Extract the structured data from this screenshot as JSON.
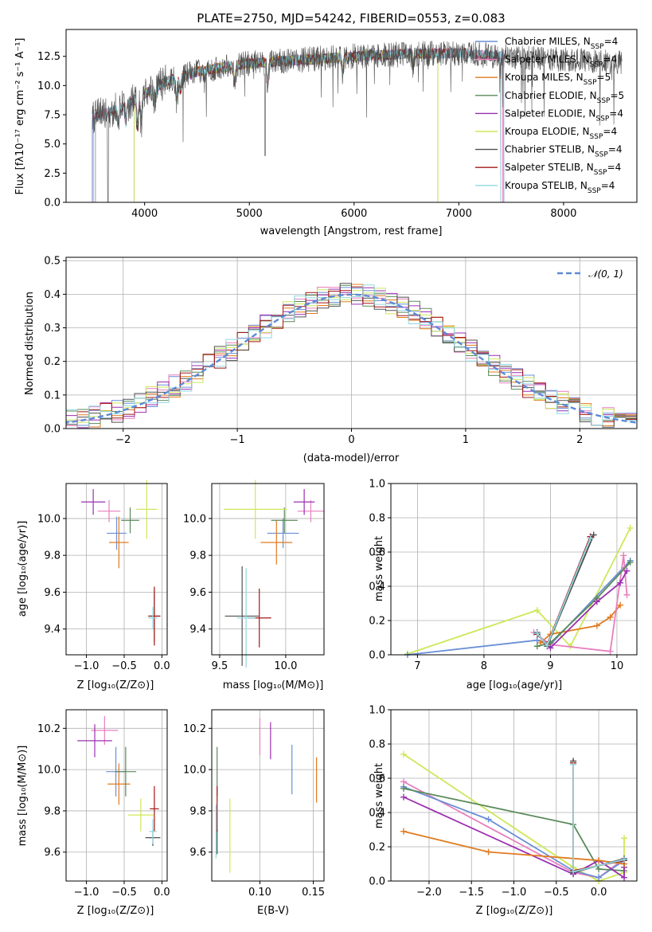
{
  "colors": {
    "chabrier_miles": "#6a8fd6",
    "salpeter_miles": "#e87fbf",
    "kroupa_miles": "#e07b1f",
    "chabrier_elodie": "#5a8a5a",
    "salpeter_elodie": "#9b2fb0",
    "kroupa_elodie": "#cde85a",
    "chabrier_stelib": "#505050",
    "salpeter_stelib": "#a41818",
    "kroupa_stelib": "#8fd8e0",
    "gauss": "#5b8ad6"
  },
  "chart_data": [
    {
      "id": "spectrum",
      "type": "line",
      "title": "PLATE=2750, MJD=54242, FIBERID=0553, z=0.083",
      "xlabel": "wavelength [Angstrom, rest frame]",
      "ylabel": "Flux [fλ10⁻¹⁷ erg cm⁻² s⁻¹ A⁻¹]",
      "xlim": [
        3250,
        8700
      ],
      "ylim": [
        0,
        14.8
      ],
      "xticks": [
        "4000",
        "5000",
        "6000",
        "7000",
        "8000"
      ],
      "yticks": [
        "0.0",
        "2.5",
        "5.0",
        "7.5",
        "10.0",
        "12.5"
      ],
      "grid": false,
      "legend_position": "right",
      "legend": [
        {
          "name": "Chabrier MILES, N",
          "sub": "SSP",
          "tail": "=4"
        },
        {
          "name": "Salpeter MILES, N",
          "sub": "SSP",
          "tail": "=4"
        },
        {
          "name": "Kroupa MILES, N",
          "sub": "SSP",
          "tail": "=5"
        },
        {
          "name": "Chabrier ELODIE, N",
          "sub": "SSP",
          "tail": "=5"
        },
        {
          "name": "Salpeter ELODIE, N",
          "sub": "SSP",
          "tail": "=4"
        },
        {
          "name": "Kroupa ELODIE, N",
          "sub": "SSP",
          "tail": "=4"
        },
        {
          "name": "Chabrier STELIB, N",
          "sub": "SSP",
          "tail": "=4"
        },
        {
          "name": "Salpeter STELIB, N",
          "sub": "SSP",
          "tail": "=4"
        },
        {
          "name": "Kroupa STELIB, N",
          "sub": "SSP",
          "tail": "=4"
        }
      ],
      "continuum_points": [
        [
          3500,
          7.2
        ],
        [
          3800,
          8.2
        ],
        [
          4000,
          9.3
        ],
        [
          4200,
          10.3
        ],
        [
          4500,
          11.2
        ],
        [
          5000,
          11.9
        ],
        [
          5500,
          12.2
        ],
        [
          6000,
          12.5
        ],
        [
          6500,
          12.7
        ],
        [
          7000,
          12.8
        ],
        [
          7400,
          12.5
        ],
        [
          8000,
          12.2
        ],
        [
          8500,
          12.0
        ]
      ],
      "data_range": [
        3500,
        8560
      ],
      "model_ranges": [
        [
          3500,
          7430
        ],
        [
          3510,
          7420
        ],
        [
          3900,
          6800
        ],
        [
          3900,
          6800
        ],
        [
          3900,
          6800
        ],
        [
          3900,
          6800
        ],
        [
          3530,
          7400
        ],
        [
          3530,
          7400
        ],
        [
          3530,
          7400
        ]
      ]
    },
    {
      "id": "residuals",
      "type": "histogram",
      "xlabel": "(data-model)/error",
      "ylabel": "Normed distribution",
      "xlim": [
        -2.5,
        2.5
      ],
      "ylim": [
        0,
        0.51
      ],
      "xticks": [
        "−2",
        "−1",
        "0",
        "1",
        "2"
      ],
      "yticks": [
        "0.0",
        "0.1",
        "0.2",
        "0.3",
        "0.4",
        "0.5"
      ],
      "grid": true,
      "bin_width": 0.1,
      "legend_position": "upper right",
      "legend_label": "𝒩(0, 1)"
    },
    {
      "id": "age-vs-Z",
      "type": "scatter",
      "xlabel": "Z [log₁₀(Z/Z⊙)]",
      "ylabel": "age  [log₁₀(age/yr)]",
      "xlim": [
        -1.27,
        0.07
      ],
      "ylim": [
        9.26,
        10.19
      ],
      "xticks": [
        {
          "v": -1.0,
          "t": "−1.0"
        },
        {
          "v": -0.5,
          "t": "−0.5"
        },
        {
          "v": 0.0,
          "t": "0.0"
        }
      ],
      "yticks": [
        {
          "v": 9.4,
          "t": "9.4"
        },
        {
          "v": 9.6,
          "t": "9.6"
        },
        {
          "v": 9.8,
          "t": "9.8"
        },
        {
          "v": 10.0,
          "t": "10.0"
        }
      ],
      "points": [
        {
          "series": "chabrier_miles",
          "x": -0.6,
          "y": 9.92,
          "xerr": 0.13,
          "yerr": 0.09
        },
        {
          "series": "salpeter_miles",
          "x": -0.7,
          "y": 10.04,
          "xerr": 0.15,
          "yerr": 0.06
        },
        {
          "series": "kroupa_miles",
          "x": -0.57,
          "y": 9.87,
          "xerr": 0.13,
          "yerr": 0.14
        },
        {
          "series": "chabrier_elodie",
          "x": -0.42,
          "y": 9.99,
          "xerr": 0.12,
          "yerr": 0.07
        },
        {
          "series": "salpeter_elodie",
          "x": -0.91,
          "y": 10.09,
          "xerr": 0.16,
          "yerr": 0.07
        },
        {
          "series": "kroupa_elodie",
          "x": -0.2,
          "y": 10.05,
          "xerr": 0.14,
          "yerr": 0.16
        },
        {
          "series": "chabrier_stelib",
          "x": -0.1,
          "y": 9.47,
          "xerr": 0.08,
          "yerr": 0.14
        },
        {
          "series": "salpeter_stelib",
          "x": -0.1,
          "y": 9.47,
          "xerr": 0.08,
          "yerr": 0.16
        },
        {
          "series": "kroupa_stelib",
          "x": -0.12,
          "y": 9.46,
          "xerr": 0.06,
          "yerr": 0.06
        }
      ]
    },
    {
      "id": "age-vs-mass",
      "type": "scatter",
      "xlabel": "mass [log₁₀(M/M⊙)]",
      "ylabel": "",
      "xlim": [
        9.44,
        10.29
      ],
      "ylim": [
        9.26,
        10.19
      ],
      "xticks": [
        {
          "v": 9.5,
          "t": "9.5"
        },
        {
          "v": 10.0,
          "t": "10.0"
        }
      ],
      "yticks": [
        {
          "v": 9.4,
          "t": "9.4"
        },
        {
          "v": 9.6,
          "t": "9.6"
        },
        {
          "v": 9.8,
          "t": "9.8"
        },
        {
          "v": 10.0,
          "t": "10.0"
        }
      ],
      "points": [
        {
          "series": "chabrier_miles",
          "x": 9.98,
          "y": 9.92,
          "xerr": 0.12,
          "yerr": 0.08
        },
        {
          "series": "salpeter_miles",
          "x": 10.19,
          "y": 10.04,
          "xerr": 0.1,
          "yerr": 0.06
        },
        {
          "series": "kroupa_miles",
          "x": 9.93,
          "y": 9.87,
          "xerr": 0.12,
          "yerr": 0.12
        },
        {
          "series": "chabrier_elodie",
          "x": 9.99,
          "y": 9.99,
          "xerr": 0.1,
          "yerr": 0.07
        },
        {
          "series": "salpeter_elodie",
          "x": 10.14,
          "y": 10.09,
          "xerr": 0.08,
          "yerr": 0.07
        },
        {
          "series": "kroupa_elodie",
          "x": 9.77,
          "y": 10.05,
          "xerr": 0.24,
          "yerr": 0.16
        },
        {
          "series": "chabrier_stelib",
          "x": 9.67,
          "y": 9.47,
          "xerr": 0.13,
          "yerr": 0.27
        },
        {
          "series": "salpeter_stelib",
          "x": 9.8,
          "y": 9.46,
          "xerr": 0.09,
          "yerr": 0.16
        },
        {
          "series": "kroupa_stelib",
          "x": 9.7,
          "y": 9.46,
          "xerr": 0.07,
          "yerr": 0.27
        }
      ]
    },
    {
      "id": "massweight-vs-age",
      "type": "line",
      "xlabel": "age  [log₁₀(age/yr)]",
      "ylabel": "mass weight",
      "xlim": [
        6.6,
        10.3
      ],
      "ylim": [
        0,
        1
      ],
      "xticks": [
        {
          "v": 7,
          "t": "7"
        },
        {
          "v": 8,
          "t": "8"
        },
        {
          "v": 9,
          "t": "9"
        },
        {
          "v": 10,
          "t": "10"
        }
      ],
      "yticks": [
        {
          "v": 0,
          "t": "0.0"
        },
        {
          "v": 0.2,
          "t": "0.2"
        },
        {
          "v": 0.4,
          "t": "0.4"
        },
        {
          "v": 0.6,
          "t": "0.6"
        },
        {
          "v": 0.8,
          "t": "0.8"
        },
        {
          "v": 1.0,
          "t": "1.0"
        }
      ],
      "series": [
        {
          "series": "kroupa_elodie",
          "x": [
            6.85,
            8.8,
            9.3,
            10.2
          ],
          "y": [
            0.005,
            0.26,
            0.05,
            0.74
          ]
        },
        {
          "series": "chabrier_miles",
          "x": [
            6.85,
            8.8,
            9.0,
            10.2
          ],
          "y": [
            0.0,
            0.085,
            0.06,
            0.55
          ]
        },
        {
          "series": "kroupa_miles",
          "x": [
            8.85,
            9.0,
            9.7,
            9.9,
            10.05
          ],
          "y": [
            0.07,
            0.12,
            0.17,
            0.22,
            0.29
          ]
        },
        {
          "series": "salpeter_miles",
          "x": [
            8.75,
            9.0,
            9.9,
            10.1,
            10.15
          ],
          "y": [
            0.13,
            0.06,
            0.02,
            0.58,
            0.35
          ]
        },
        {
          "series": "chabrier_elodie",
          "x": [
            8.8,
            9.0,
            9.7,
            10.2
          ],
          "y": [
            0.05,
            0.07,
            0.33,
            0.54
          ]
        },
        {
          "series": "salpeter_elodie",
          "x": [
            8.8,
            9.0,
            9.7,
            10.05,
            10.15
          ],
          "y": [
            0.12,
            0.04,
            0.31,
            0.42,
            0.49
          ]
        },
        {
          "series": "chabrier_stelib",
          "x": [
            8.8,
            8.95,
            9.65
          ],
          "y": [
            0.13,
            0.05,
            0.7
          ]
        },
        {
          "series": "salpeter_stelib",
          "x": [
            8.8,
            8.95,
            9.6
          ],
          "y": [
            0.12,
            0.06,
            0.69
          ]
        },
        {
          "series": "kroupa_stelib",
          "x": [
            8.8,
            8.95,
            9.6
          ],
          "y": [
            0.125,
            0.055,
            0.68
          ]
        }
      ]
    },
    {
      "id": "mass-vs-Z",
      "type": "scatter",
      "xlabel": "Z [log₁₀(Z/Z⊙)]",
      "ylabel": "mass [log₁₀(M/M⊙)]",
      "xlim": [
        -1.27,
        0.07
      ],
      "ylim": [
        9.46,
        10.29
      ],
      "xticks": [
        {
          "v": -1.0,
          "t": "−1.0"
        },
        {
          "v": -0.5,
          "t": "−0.5"
        },
        {
          "v": 0.0,
          "t": "0.0"
        }
      ],
      "yticks": [
        {
          "v": 9.6,
          "t": "9.6"
        },
        {
          "v": 9.8,
          "t": "9.8"
        },
        {
          "v": 10.0,
          "t": "10.0"
        },
        {
          "v": 10.2,
          "t": "10.2"
        }
      ],
      "points": [
        {
          "series": "chabrier_miles",
          "x": -0.61,
          "y": 9.99,
          "xerr": 0.13,
          "yerr": 0.12
        },
        {
          "series": "salpeter_miles",
          "x": -0.76,
          "y": 10.19,
          "xerr": 0.18,
          "yerr": 0.07
        },
        {
          "series": "kroupa_miles",
          "x": -0.57,
          "y": 9.93,
          "xerr": 0.15,
          "yerr": 0.1
        },
        {
          "series": "chabrier_elodie",
          "x": -0.48,
          "y": 9.99,
          "xerr": 0.14,
          "yerr": 0.12
        },
        {
          "series": "salpeter_elodie",
          "x": -0.89,
          "y": 10.14,
          "xerr": 0.23,
          "yerr": 0.08
        },
        {
          "series": "kroupa_elodie",
          "x": -0.28,
          "y": 9.78,
          "xerr": 0.17,
          "yerr": 0.08
        },
        {
          "series": "chabrier_stelib",
          "x": -0.12,
          "y": 9.67,
          "xerr": 0.1,
          "yerr": 0.04
        },
        {
          "series": "salpeter_stelib",
          "x": -0.1,
          "y": 9.81,
          "xerr": 0.06,
          "yerr": 0.11
        },
        {
          "series": "kroupa_stelib",
          "x": -0.12,
          "y": 9.7,
          "xerr": 0.05,
          "yerr": 0.06
        }
      ]
    },
    {
      "id": "mass-vs-ebv",
      "type": "scatter",
      "xlabel": "E(B-V)",
      "ylabel": "",
      "xlim": [
        0.055,
        0.16
      ],
      "ylim": [
        9.46,
        10.29
      ],
      "xticks": [
        {
          "v": 0.1,
          "t": "0.10"
        },
        {
          "v": 0.15,
          "t": "0.15"
        }
      ],
      "yticks": [
        {
          "v": 9.6,
          "t": "9.6"
        },
        {
          "v": 9.8,
          "t": "9.8"
        },
        {
          "v": 10.0,
          "t": "10.0"
        },
        {
          "v": 10.2,
          "t": "10.2"
        }
      ],
      "points": [
        {
          "series": "chabrier_miles",
          "x": 0.13,
          "y": 10.0,
          "xerr": 0,
          "yerr": 0.12
        },
        {
          "series": "salpeter_miles",
          "x": 0.1,
          "y": 10.16,
          "xerr": 0,
          "yerr": 0.09
        },
        {
          "series": "kroupa_miles",
          "x": 0.153,
          "y": 9.95,
          "xerr": 0,
          "yerr": 0.11
        },
        {
          "series": "chabrier_elodie",
          "x": 0.06,
          "y": 9.99,
          "xerr": 0,
          "yerr": 0.12
        },
        {
          "series": "salpeter_elodie",
          "x": 0.11,
          "y": 10.14,
          "xerr": 0,
          "yerr": 0.09
        },
        {
          "series": "kroupa_elodie",
          "x": 0.072,
          "y": 9.68,
          "xerr": 0,
          "yerr": 0.18
        },
        {
          "series": "chabrier_stelib",
          "x": 0.06,
          "y": 9.65,
          "xerr": 0,
          "yerr": 0.06
        },
        {
          "series": "salpeter_stelib",
          "x": 0.06,
          "y": 9.81,
          "xerr": 0,
          "yerr": 0.11
        },
        {
          "series": "kroupa_stelib",
          "x": 0.059,
          "y": 9.7,
          "xerr": 0,
          "yerr": 0.13
        }
      ]
    },
    {
      "id": "massweight-vs-Z",
      "type": "line",
      "xlabel": "Z [log₁₀(Z/Z⊙)]",
      "ylabel": "mass weight",
      "xlim": [
        -2.45,
        0.45
      ],
      "ylim": [
        0,
        1
      ],
      "xticks": [
        {
          "v": -2.0,
          "t": "−2.0"
        },
        {
          "v": -1.5,
          "t": "−1.5"
        },
        {
          "v": -1.0,
          "t": "−1.0"
        },
        {
          "v": -0.5,
          "t": "−0.5"
        },
        {
          "v": 0.0,
          "t": "0.0"
        }
      ],
      "yticks": [
        {
          "v": 0,
          "t": "0.0"
        },
        {
          "v": 0.2,
          "t": "0.2"
        },
        {
          "v": 0.4,
          "t": "0.4"
        },
        {
          "v": 0.6,
          "t": "0.6"
        },
        {
          "v": 0.8,
          "t": "0.8"
        },
        {
          "v": 1.0,
          "t": "1.0"
        }
      ],
      "series": [
        {
          "series": "kroupa_elodie",
          "x": [
            -2.3,
            -0.3,
            0.0,
            0.3,
            0.3
          ],
          "y": [
            0.74,
            0.08,
            0.0,
            0.05,
            0.25
          ]
        },
        {
          "series": "salpeter_miles",
          "x": [
            -2.3,
            -0.3,
            0.0,
            0.3
          ],
          "y": [
            0.58,
            0.05,
            0.02,
            0.13
          ]
        },
        {
          "series": "chabrier_miles",
          "x": [
            -2.3,
            -1.3,
            -0.3,
            0.0,
            0.3
          ],
          "y": [
            0.55,
            0.36,
            0.06,
            0.02,
            0.12
          ]
        },
        {
          "series": "chabrier_elodie",
          "x": [
            -2.3,
            -0.3,
            0.0,
            0.3,
            0.3
          ],
          "y": [
            0.54,
            0.33,
            0.07,
            0.06,
            0.12
          ]
        },
        {
          "series": "salpeter_elodie",
          "x": [
            -2.3,
            -0.3,
            0.0,
            0.3,
            0.3
          ],
          "y": [
            0.49,
            0.04,
            0.12,
            0.02,
            0.08
          ]
        },
        {
          "series": "kroupa_miles",
          "x": [
            -2.3,
            -1.3,
            0.0,
            0.3
          ],
          "y": [
            0.29,
            0.17,
            0.12,
            0.1
          ]
        },
        {
          "series": "chabrier_stelib",
          "x": [
            -0.3,
            -0.3,
            0.3
          ],
          "y": [
            0.7,
            0.05,
            0.13
          ]
        },
        {
          "series": "salpeter_stelib",
          "x": [
            -0.3,
            -0.3,
            0.3
          ],
          "y": [
            0.69,
            0.06,
            0.12
          ]
        },
        {
          "series": "kroupa_stelib",
          "x": [
            -0.3,
            -0.3,
            0.3
          ],
          "y": [
            0.68,
            0.055,
            0.125
          ]
        }
      ]
    }
  ]
}
